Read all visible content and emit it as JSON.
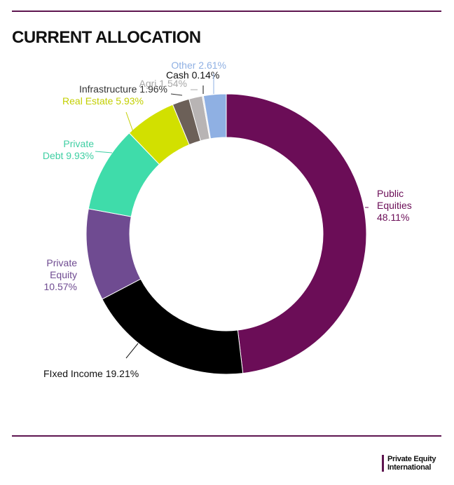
{
  "header": {
    "title": "CURRENT ALLOCATION"
  },
  "brand": {
    "line1": "Private Equity",
    "line2": "International"
  },
  "chart_data": {
    "type": "donut",
    "title": "CURRENT ALLOCATION",
    "unit": "%",
    "slices": [
      {
        "name": "Public Equities",
        "value": 48.11,
        "label": [
          "Public",
          "Equities",
          "48.11%"
        ],
        "color": "#6b0d57",
        "label_color": "#6b0d57"
      },
      {
        "name": "Fixed Income",
        "value": 19.21,
        "label": [
          "FIxed Income 19.21%"
        ],
        "color": "#000000",
        "label_color": "#111111"
      },
      {
        "name": "Private Equity",
        "value": 10.57,
        "label": [
          "Private",
          "Equity",
          "10.57%"
        ],
        "color": "#6f4b91",
        "label_color": "#6f4b91"
      },
      {
        "name": "Private Debt",
        "value": 9.93,
        "label": [
          "Private",
          "Debt 9.93%"
        ],
        "color": "#3fdcaa",
        "label_color": "#3fcfa3"
      },
      {
        "name": "Real Estate",
        "value": 5.93,
        "label": [
          "Real Estate 5.93%"
        ],
        "color": "#d2e000",
        "label_color": "#c3cf00"
      },
      {
        "name": "Infrastructure",
        "value": 1.96,
        "label": [
          "Infrastructure 1.96%"
        ],
        "color": "#6c6058",
        "label_color": "#333333"
      },
      {
        "name": "Agri",
        "value": 1.54,
        "label": [
          "Agri 1.54%"
        ],
        "color": "#b8b4b4",
        "label_color": "#a8a8a8"
      },
      {
        "name": "Cash",
        "value": 0.14,
        "label": [
          "Cash 0.14%"
        ],
        "color": "#e0e0e0",
        "label_color": "#111111"
      },
      {
        "name": "Other",
        "value": 2.61,
        "label": [
          "Other 2.61%"
        ],
        "color": "#8fb0e3",
        "label_color": "#8fb0e3"
      }
    ]
  }
}
